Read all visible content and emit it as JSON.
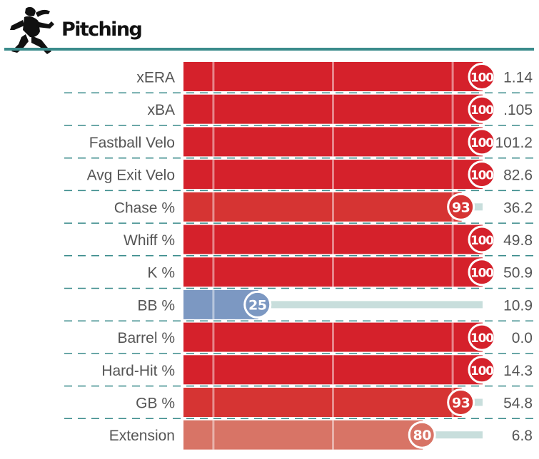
{
  "header": {
    "title": "Pitching",
    "icon": "pitcher-icon"
  },
  "chart_data": {
    "type": "bar",
    "orientation": "horizontal",
    "title": "Pitching",
    "xlim": [
      0,
      100
    ],
    "categories": [
      "xERA",
      "xBA",
      "Fastball Velo",
      "Avg Exit Velo",
      "Chase %",
      "Whiff %",
      "K %",
      "BB %",
      "Barrel %",
      "Hard-Hit %",
      "GB %",
      "Extension"
    ],
    "percentiles": [
      100,
      100,
      100,
      100,
      93,
      100,
      100,
      25,
      100,
      100,
      93,
      80
    ],
    "stat_values": [
      "1.14",
      ".105",
      "101.2",
      "82.6",
      "36.2",
      "49.8",
      "50.9",
      "10.9",
      "0.0",
      "14.3",
      "54.8",
      "6.8"
    ],
    "reference_lines": [
      10,
      50,
      90
    ],
    "colors": {
      "elite": "#d5212b",
      "very_high": "#d63433",
      "high": "#d87466",
      "low": "#7c98c2",
      "track": "#c8dedc",
      "divider": "#3a8b8b"
    }
  }
}
